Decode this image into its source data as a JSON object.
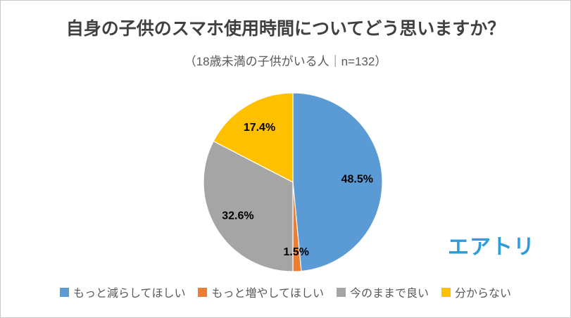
{
  "header": {
    "title": "自身の子供のスマホ使用時間についてどう思いますか？",
    "subtitle": "（18歳未満の子供がいる人｜n=132）"
  },
  "brand": {
    "logo_text": "エアトリ",
    "logo_color": "#2e9cd9"
  },
  "chart_data": {
    "type": "pie",
    "title": "自身の子供のスマホ使用時間についてどう思いますか？",
    "subtitle": "（18歳未満の子供がいる人｜n=132）",
    "sample_note": "18歳未満の子供がいる人",
    "n": 132,
    "categories": [
      "もっと減らしてほしい",
      "もっと増やしてほしい",
      "今のままで良い",
      "分からない"
    ],
    "values": [
      48.5,
      1.5,
      32.6,
      17.4
    ],
    "labels": [
      "48.5%",
      "1.5%",
      "32.6%",
      "17.4%"
    ],
    "colors": [
      "#5b9bd5",
      "#ed7d31",
      "#a5a5a5",
      "#ffc000"
    ],
    "start_angle_deg": 0,
    "direction": "clockwise",
    "legend_position": "bottom"
  }
}
